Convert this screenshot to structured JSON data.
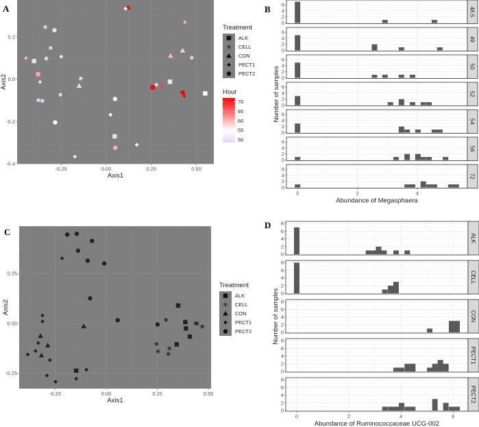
{
  "panels": {
    "a": "A",
    "b": "B",
    "c": "C",
    "d": "D"
  },
  "chart_data": [
    {
      "type": "scatter",
      "panel": "A",
      "xlabel": "Axis1",
      "ylabel": "Axis2",
      "xlim": [
        -0.494,
        0.597
      ],
      "ylim": [
        -0.4,
        0.375
      ],
      "xticks": [
        -0.25,
        0,
        0.25,
        0.5
      ],
      "xtick_labels": [
        "-0.25",
        "0.00",
        "0.25",
        "0.50"
      ],
      "yticks": [
        -0.4,
        -0.2,
        0,
        0.2
      ],
      "ytick_labels": [
        "-0.4",
        "-0.2",
        "0.0",
        "0.2"
      ],
      "grid": true,
      "background": "#7f7f7f",
      "legend_position": "right",
      "shape_legend": {
        "title": "Treatment",
        "entries": [
          "ALK",
          "CELL",
          "CON",
          "PECT1",
          "PECT2"
        ],
        "shapes": [
          "square",
          "asterisk",
          "triangle",
          "diamond",
          "circle"
        ]
      },
      "color_legend": {
        "title": "Hour",
        "ticks": [
          70,
          65,
          60,
          55,
          50
        ],
        "tick_labels": [
          "70",
          "65",
          "60",
          "55",
          "50"
        ],
        "range": [
          48.5,
          72
        ],
        "colors": {
          "low": "#e4d4f8",
          "mid": "#ffffff",
          "high": "#ff0000"
        }
      },
      "points": [
        {
          "x": 0.122,
          "y": 0.34,
          "treatment": "CON",
          "hour": 72
        },
        {
          "x": 0.108,
          "y": 0.334,
          "treatment": "PECT1",
          "hour": 55
        },
        {
          "x": 0.437,
          "y": 0.27,
          "treatment": "PECT1",
          "hour": 60
        },
        {
          "x": -0.338,
          "y": 0.247,
          "treatment": "CELL",
          "hour": 52
        },
        {
          "x": -0.287,
          "y": 0.232,
          "treatment": "PECT2",
          "hour": 50
        },
        {
          "x": -0.308,
          "y": 0.148,
          "treatment": "CELL",
          "hour": 54
        },
        {
          "x": 0.424,
          "y": 0.136,
          "treatment": "CON",
          "hour": 58
        },
        {
          "x": 0.357,
          "y": 0.111,
          "treatment": "CON",
          "hour": 60
        },
        {
          "x": 0.475,
          "y": 0.102,
          "treatment": "CELL",
          "hour": 56
        },
        {
          "x": -0.445,
          "y": 0.1,
          "treatment": "PECT1",
          "hour": 60
        },
        {
          "x": -0.332,
          "y": 0.098,
          "treatment": "CELL",
          "hour": 54
        },
        {
          "x": -0.249,
          "y": 0.107,
          "treatment": "PECT1",
          "hour": 52
        },
        {
          "x": -0.4,
          "y": 0.086,
          "treatment": "ALK",
          "hour": 50
        },
        {
          "x": -0.378,
          "y": 0.024,
          "treatment": "ALK",
          "hour": 61
        },
        {
          "x": -0.141,
          "y": 0.004,
          "treatment": "CELL",
          "hour": 54
        },
        {
          "x": -0.367,
          "y": -0.013,
          "treatment": "PECT1",
          "hour": 50
        },
        {
          "x": -0.15,
          "y": -0.031,
          "treatment": "CON",
          "hour": 50
        },
        {
          "x": 0.354,
          "y": -0.012,
          "treatment": "ALK",
          "hour": 51
        },
        {
          "x": 0.278,
          "y": -0.026,
          "treatment": "CELL",
          "hour": 54
        },
        {
          "x": 0.306,
          "y": -0.031,
          "treatment": "CELL",
          "hour": 68
        },
        {
          "x": 0.259,
          "y": -0.038,
          "treatment": "ALK",
          "hour": 72
        },
        {
          "x": 0.424,
          "y": -0.063,
          "treatment": "PECT2",
          "hour": 72
        },
        {
          "x": 0.433,
          "y": -0.079,
          "treatment": "PECT1",
          "hour": 72
        },
        {
          "x": 0.549,
          "y": -0.067,
          "treatment": "ALK",
          "hour": 55
        },
        {
          "x": -0.376,
          "y": -0.099,
          "treatment": "CELL",
          "hour": 54
        },
        {
          "x": -0.354,
          "y": -0.102,
          "treatment": "CELL",
          "hour": 54
        },
        {
          "x": -0.254,
          "y": -0.073,
          "treatment": "CELL",
          "hour": 54
        },
        {
          "x": 0.049,
          "y": -0.093,
          "treatment": "PECT2",
          "hour": 53
        },
        {
          "x": 0.024,
          "y": -0.168,
          "treatment": "PECT1",
          "hour": 55
        },
        {
          "x": -0.283,
          "y": -0.204,
          "treatment": "PECT2",
          "hour": 55
        },
        {
          "x": 0.047,
          "y": -0.27,
          "treatment": "ALK",
          "hour": 50
        },
        {
          "x": 0.051,
          "y": -0.324,
          "treatment": "PECT2",
          "hour": 60
        },
        {
          "x": 0.17,
          "y": -0.31,
          "treatment": "PECT1",
          "hour": 53
        },
        {
          "x": -0.174,
          "y": -0.366,
          "treatment": "PECT1",
          "hour": 52
        }
      ]
    },
    {
      "type": "bar",
      "panel": "B",
      "subtype": "faceted-histogram",
      "xlabel": "Abundance of Megasphaera",
      "ylabel": "Number of samples",
      "xlim": [
        -0.37,
        5.67
      ],
      "ylim": [
        0,
        7.35
      ],
      "binwidth": 0.183,
      "xticks": [
        0,
        2,
        4
      ],
      "xtick_labels": [
        "0",
        "2",
        "4"
      ],
      "yticks": [
        0,
        2,
        4,
        6
      ],
      "ytick_labels": [
        "0",
        "2",
        "4",
        "6"
      ],
      "grid": true,
      "bar_color": "#595959",
      "facets": [
        {
          "label": "48.5",
          "bars": [
            [
              0,
              7
            ],
            [
              2.92,
              1
            ],
            [
              4.57,
              1
            ]
          ]
        },
        {
          "label": "49",
          "bars": [
            [
              0,
              5
            ],
            [
              2.57,
              2
            ],
            [
              3.47,
              1
            ],
            [
              4.75,
              1
            ]
          ]
        },
        {
          "label": "50",
          "bars": [
            [
              0,
              5
            ],
            [
              2.57,
              1
            ],
            [
              2.92,
              1
            ],
            [
              3.47,
              1
            ],
            [
              3.84,
              1
            ]
          ]
        },
        {
          "label": "52",
          "bars": [
            [
              0,
              3
            ],
            [
              3.1,
              1
            ],
            [
              3.47,
              2
            ],
            [
              3.84,
              1
            ],
            [
              4.2,
              1
            ],
            [
              4.39,
              1
            ]
          ]
        },
        {
          "label": "54",
          "bars": [
            [
              0,
              3
            ],
            [
              3.47,
              2
            ],
            [
              3.66,
              1
            ],
            [
              4.02,
              1
            ],
            [
              4.57,
              1
            ],
            [
              4.75,
              1
            ]
          ]
        },
        {
          "label": "56",
          "bars": [
            [
              0,
              1
            ],
            [
              3.29,
              1
            ],
            [
              3.66,
              2
            ],
            [
              4.02,
              2
            ],
            [
              4.2,
              1
            ],
            [
              4.39,
              1
            ],
            [
              4.94,
              1
            ]
          ]
        },
        {
          "label": "72",
          "bars": [
            [
              0,
              1
            ],
            [
              3.66,
              1
            ],
            [
              3.84,
              1
            ],
            [
              4.2,
              2
            ],
            [
              4.39,
              1
            ],
            [
              4.57,
              1
            ],
            [
              5.12,
              1
            ],
            [
              5.3,
              1
            ]
          ]
        }
      ]
    },
    {
      "type": "scatter",
      "panel": "C",
      "xlabel": "Axis1",
      "ylabel": "Axis2",
      "xlim": [
        -0.426,
        0.513
      ],
      "ylim": [
        -0.327,
        0.488
      ],
      "xticks": [
        -0.25,
        0,
        0.25,
        0.5
      ],
      "xtick_labels": [
        "-0.25",
        "0.00",
        "0.25",
        "0.50"
      ],
      "yticks": [
        -0.25,
        0,
        0.25
      ],
      "ytick_labels": [
        "-0.25",
        "0.00",
        "0.25"
      ],
      "grid": true,
      "background": "#7f7f7f",
      "point_color": "#222222",
      "legend_position": "right",
      "shape_legend": {
        "title": "Treatment",
        "entries": [
          "ALK",
          "CELL",
          "CON",
          "PECT1",
          "PECT2"
        ],
        "shapes": [
          "square",
          "asterisk",
          "triangle",
          "diamond",
          "circle"
        ]
      },
      "points": [
        {
          "x": -0.191,
          "y": 0.446,
          "treatment": "PECT2"
        },
        {
          "x": -0.144,
          "y": 0.45,
          "treatment": "PECT2"
        },
        {
          "x": -0.07,
          "y": 0.414,
          "treatment": "PECT2"
        },
        {
          "x": -0.138,
          "y": 0.365,
          "treatment": "PECT2"
        },
        {
          "x": -0.091,
          "y": 0.315,
          "treatment": "PECT2"
        },
        {
          "x": -0.01,
          "y": 0.301,
          "treatment": "PECT2"
        },
        {
          "x": -0.079,
          "y": 0.126,
          "treatment": "PECT2"
        },
        {
          "x": 0.056,
          "y": 0.016,
          "treatment": "PECT2"
        },
        {
          "x": 0.251,
          "y": -0.005,
          "treatment": "PECT2"
        },
        {
          "x": -0.216,
          "y": 0.327,
          "treatment": "PECT1"
        },
        {
          "x": -0.312,
          "y": 0.04,
          "treatment": "PECT1"
        },
        {
          "x": -0.312,
          "y": 0.01,
          "treatment": "PECT1"
        },
        {
          "x": -0.333,
          "y": -0.098,
          "treatment": "PECT1"
        },
        {
          "x": -0.346,
          "y": -0.138,
          "treatment": "PECT1"
        },
        {
          "x": -0.384,
          "y": -0.156,
          "treatment": "PECT1"
        },
        {
          "x": -0.276,
          "y": -0.184,
          "treatment": "PECT1"
        },
        {
          "x": -0.29,
          "y": -0.261,
          "treatment": "PECT1"
        },
        {
          "x": -0.248,
          "y": -0.292,
          "treatment": "PECT1"
        },
        {
          "x": -0.147,
          "y": -0.277,
          "treatment": "PECT1"
        },
        {
          "x": -0.097,
          "y": -0.232,
          "treatment": "PECT1"
        },
        {
          "x": -0.322,
          "y": -0.063,
          "treatment": "CON"
        },
        {
          "x": -0.286,
          "y": -0.11,
          "treatment": "CON"
        },
        {
          "x": -0.317,
          "y": -0.16,
          "treatment": "CON"
        },
        {
          "x": -0.11,
          "y": -0.014,
          "treatment": "CON"
        },
        {
          "x": 0.352,
          "y": 0.09,
          "treatment": "ALK"
        },
        {
          "x": 0.387,
          "y": 0.007,
          "treatment": "ALK"
        },
        {
          "x": 0.39,
          "y": -0.025,
          "treatment": "ALK"
        },
        {
          "x": 0.409,
          "y": -0.066,
          "treatment": "ALK"
        },
        {
          "x": 0.345,
          "y": -0.105,
          "treatment": "ALK"
        },
        {
          "x": -0.147,
          "y": -0.237,
          "treatment": "ALK"
        },
        {
          "x": 0.292,
          "y": 0.018,
          "treatment": "CELL"
        },
        {
          "x": 0.437,
          "y": 0.0,
          "treatment": "CELL"
        },
        {
          "x": 0.445,
          "y": 0.0,
          "treatment": "CELL"
        },
        {
          "x": 0.47,
          "y": -0.016,
          "treatment": "CELL"
        },
        {
          "x": 0.246,
          "y": -0.103,
          "treatment": "CELL"
        },
        {
          "x": 0.253,
          "y": -0.14,
          "treatment": "CELL"
        },
        {
          "x": 0.309,
          "y": -0.125,
          "treatment": "CELL"
        },
        {
          "x": 0.304,
          "y": -0.153,
          "treatment": "CELL"
        }
      ]
    },
    {
      "type": "bar",
      "panel": "D",
      "subtype": "faceted-histogram",
      "xlabel": "Abundance of Ruminococcaceae UCG-002",
      "ylabel": "Number of samples",
      "xlim": [
        -0.42,
        6.57
      ],
      "ylim": [
        0,
        8.4
      ],
      "binwidth": 0.21,
      "xticks": [
        0,
        2,
        4,
        6
      ],
      "xtick_labels": [
        "0",
        "2",
        "4",
        "6"
      ],
      "yticks": [
        0,
        2,
        4,
        6,
        8
      ],
      "ytick_labels": [
        "0",
        "2",
        "4",
        "6",
        "8"
      ],
      "grid": true,
      "bar_color": "#595959",
      "facets": [
        {
          "label": "ALK",
          "bars": [
            [
              0,
              7
            ],
            [
              2.75,
              1
            ],
            [
              2.96,
              1
            ],
            [
              3.14,
              2
            ],
            [
              3.35,
              1
            ],
            [
              3.81,
              1
            ],
            [
              4.24,
              1
            ]
          ]
        },
        {
          "label": "CELL",
          "bars": [
            [
              0,
              8
            ],
            [
              3.38,
              1
            ],
            [
              3.6,
              2
            ],
            [
              3.81,
              3
            ]
          ]
        },
        {
          "label": "CON",
          "bars": [
            [
              5.1,
              1
            ],
            [
              5.94,
              3
            ],
            [
              6.15,
              3
            ]
          ]
        },
        {
          "label": "PECT1",
          "bars": [
            [
              3.81,
              1
            ],
            [
              4.02,
              1
            ],
            [
              4.24,
              2
            ],
            [
              4.45,
              2
            ],
            [
              5.1,
              1
            ],
            [
              5.3,
              2
            ],
            [
              5.51,
              3
            ],
            [
              5.72,
              2
            ]
          ]
        },
        {
          "label": "PECT2",
          "bars": [
            [
              3.38,
              1
            ],
            [
              3.6,
              1
            ],
            [
              3.81,
              1
            ],
            [
              4.02,
              2
            ],
            [
              4.24,
              1
            ],
            [
              4.45,
              1
            ],
            [
              5.3,
              3
            ],
            [
              5.72,
              2
            ],
            [
              5.94,
              1
            ],
            [
              6.15,
              1
            ]
          ]
        }
      ]
    }
  ]
}
